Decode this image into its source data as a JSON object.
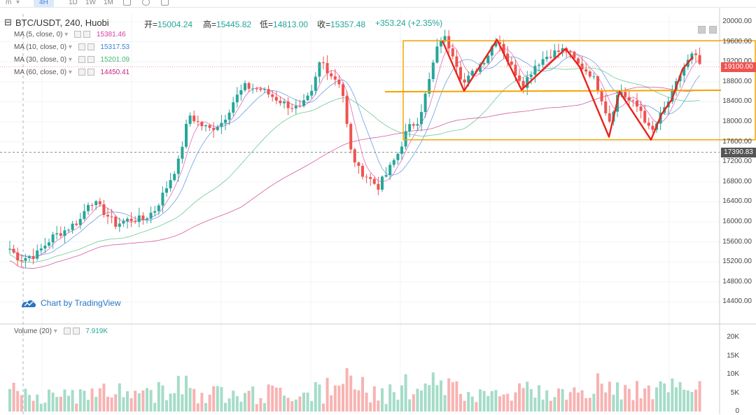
{
  "toolbar": {
    "items": [
      "m",
      "4H",
      "1D",
      "1W",
      "1M"
    ],
    "active": "4H"
  },
  "header": {
    "symbol": "BTC/USDT, 240, Huobi",
    "open_label": "开=",
    "open_value": "15004.24",
    "high_label": "高=",
    "high_value": "15445.82",
    "low_label": "低=",
    "low_value": "14813.00",
    "close_label": "收=",
    "close_value": "15357.48",
    "change": "+353.24 (+2.35%)"
  },
  "indicators": [
    {
      "label": "MA (5, close, 0)",
      "value": "15381.46",
      "color": "#d63ca8"
    },
    {
      "label": "MA (10, close, 0)",
      "value": "15317.53",
      "color": "#3d7fd9"
    },
    {
      "label": "MA (30, close, 0)",
      "value": "15201.09",
      "color": "#3cb96f"
    },
    {
      "label": "MA (60, close, 0)",
      "value": "14450.41",
      "color": "#c9237b"
    }
  ],
  "volume_indicator": {
    "label": "Volume (20)",
    "value": "7.919K"
  },
  "watermark": "Chart by TradingView",
  "price_axis": [
    "20000.00",
    "19600.00",
    "19200.00",
    "18800.00",
    "18400.00",
    "18000.00",
    "17600.00",
    "17200.00",
    "16800.00",
    "16400.00",
    "16000.00",
    "15600.00",
    "15200.00",
    "14800.00",
    "14400.00"
  ],
  "volume_axis": [
    "20K",
    "15K",
    "10K",
    "5K",
    "0"
  ],
  "price_tags": {
    "current": "19100.00",
    "level": "17390.83"
  },
  "colors": {
    "up": "#26a69a",
    "down": "#ef5350",
    "up_volume": "#a5dcc8",
    "down_volume": "#f7b3b2",
    "box": "#f5a300",
    "pattern": "#e8231c"
  },
  "chart_data": {
    "type": "candlestick",
    "ylim": [
      14200,
      20100
    ],
    "volume_ylim": [
      0,
      22000
    ],
    "key_points": [
      {
        "x": 5,
        "price": 15600
      },
      {
        "x": 28,
        "price": 15250
      },
      {
        "x": 52,
        "price": 15350
      },
      {
        "x": 75,
        "price": 15700
      },
      {
        "x": 95,
        "price": 15850
      },
      {
        "x": 115,
        "price": 16050
      },
      {
        "x": 128,
        "price": 16450
      },
      {
        "x": 145,
        "price": 16250
      },
      {
        "x": 165,
        "price": 15950
      },
      {
        "x": 185,
        "price": 16050
      },
      {
        "x": 205,
        "price": 16050
      },
      {
        "x": 222,
        "price": 16250
      },
      {
        "x": 240,
        "price": 16750
      },
      {
        "x": 255,
        "price": 17200
      },
      {
        "x": 270,
        "price": 18150
      },
      {
        "x": 285,
        "price": 17950
      },
      {
        "x": 300,
        "price": 17850
      },
      {
        "x": 318,
        "price": 18000
      },
      {
        "x": 335,
        "price": 18450
      },
      {
        "x": 350,
        "price": 18700
      },
      {
        "x": 372,
        "price": 18650
      },
      {
        "x": 390,
        "price": 18500
      },
      {
        "x": 408,
        "price": 18350
      },
      {
        "x": 428,
        "price": 18250
      },
      {
        "x": 445,
        "price": 18550
      },
      {
        "x": 458,
        "price": 19250
      },
      {
        "x": 472,
        "price": 18950
      },
      {
        "x": 488,
        "price": 18750
      },
      {
        "x": 500,
        "price": 17450
      },
      {
        "x": 512,
        "price": 17050
      },
      {
        "x": 525,
        "price": 16900
      },
      {
        "x": 540,
        "price": 16700
      },
      {
        "x": 552,
        "price": 16950
      },
      {
        "x": 568,
        "price": 17350
      },
      {
        "x": 582,
        "price": 17850
      },
      {
        "x": 598,
        "price": 18050
      },
      {
        "x": 612,
        "price": 18750
      },
      {
        "x": 622,
        "price": 19350
      },
      {
        "x": 632,
        "price": 19750
      },
      {
        "x": 648,
        "price": 19350
      },
      {
        "x": 662,
        "price": 18750
      },
      {
        "x": 680,
        "price": 19050
      },
      {
        "x": 695,
        "price": 19300
      },
      {
        "x": 710,
        "price": 19700
      },
      {
        "x": 728,
        "price": 19150
      },
      {
        "x": 748,
        "price": 18750
      },
      {
        "x": 765,
        "price": 19150
      },
      {
        "x": 785,
        "price": 19350
      },
      {
        "x": 808,
        "price": 19450
      },
      {
        "x": 825,
        "price": 19150
      },
      {
        "x": 845,
        "price": 18950
      },
      {
        "x": 858,
        "price": 18550
      },
      {
        "x": 870,
        "price": 18000
      },
      {
        "x": 885,
        "price": 18650
      },
      {
        "x": 900,
        "price": 18400
      },
      {
        "x": 915,
        "price": 18250
      },
      {
        "x": 930,
        "price": 17750
      },
      {
        "x": 945,
        "price": 18150
      },
      {
        "x": 960,
        "price": 18550
      },
      {
        "x": 975,
        "price": 19050
      },
      {
        "x": 990,
        "price": 19350
      },
      {
        "x": 1002,
        "price": 19100
      }
    ],
    "annotations": {
      "rectangle": {
        "x1": 576,
        "x2": 1079,
        "price_top": 19620,
        "price_bottom": 17640
      },
      "support_line": {
        "x1": 550,
        "price1": 18600,
        "x2": 1030,
        "price2": 18630
      },
      "dashed_level": 17390,
      "zigzag": [
        {
          "x": 632,
          "price": 19620
        },
        {
          "x": 663,
          "price": 18620
        },
        {
          "x": 710,
          "price": 19640
        },
        {
          "x": 745,
          "price": 18640
        },
        {
          "x": 808,
          "price": 19460
        },
        {
          "x": 828,
          "price": 19100
        },
        {
          "x": 870,
          "price": 17700
        },
        {
          "x": 885,
          "price": 18600
        },
        {
          "x": 930,
          "price": 17640
        },
        {
          "x": 945,
          "price": 18150
        },
        {
          "x": 960,
          "price": 18450
        },
        {
          "x": 975,
          "price": 19050
        },
        {
          "x": 990,
          "price": 19300
        }
      ]
    }
  }
}
